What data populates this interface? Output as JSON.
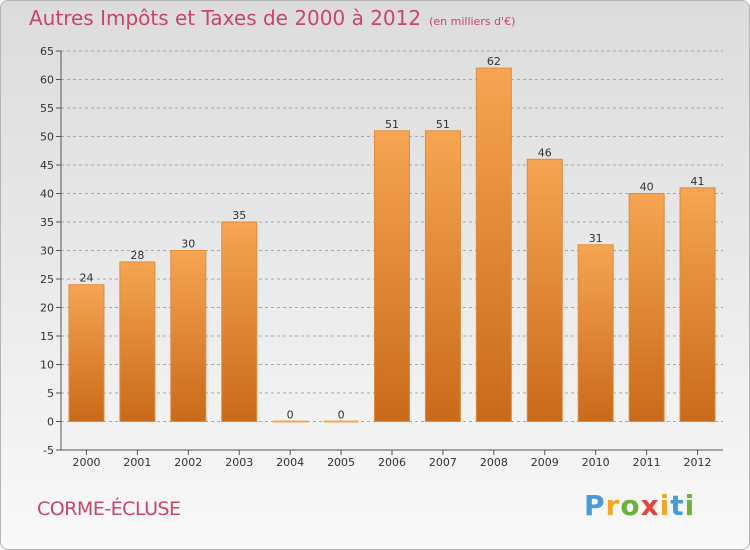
{
  "title": "Autres Impôts et Taxes de 2000 à 2012",
  "unit_note": "(en milliers d'€)",
  "commune": "CORME-ÉCLUSE",
  "logo": {
    "letters": [
      "P",
      "r",
      "o",
      "x",
      "i",
      "t",
      "i"
    ],
    "colors": [
      "#4a9bd6",
      "#f2a72b",
      "#6cb23a",
      "#e1463d",
      "#f2a72b",
      "#4a9bd6",
      "#6cb23a"
    ]
  },
  "colors": {
    "bar_top": "#f6a553",
    "bar_bottom": "#c96a1a",
    "bar_edge": "#e08c3a",
    "grid": "#a8a8a8",
    "title": "#c8466a"
  },
  "chart_data": {
    "type": "bar",
    "categories": [
      "2000",
      "2001",
      "2002",
      "2003",
      "2004",
      "2005",
      "2006",
      "2007",
      "2008",
      "2009",
      "2010",
      "2011",
      "2012"
    ],
    "values": [
      24,
      28,
      30,
      35,
      0,
      0,
      51,
      51,
      62,
      46,
      31,
      40,
      41
    ],
    "data_labels": [
      "24",
      "28",
      "30",
      "35",
      "0",
      "0",
      "51",
      "51",
      "62",
      "46",
      "31",
      "40",
      "41"
    ],
    "title": "Autres Impôts et Taxes de 2000 à 2012",
    "subtitle": "(en milliers d'€)",
    "ylim": [
      -5,
      65
    ],
    "yticks": [
      -5,
      0,
      5,
      10,
      15,
      20,
      25,
      30,
      35,
      40,
      45,
      50,
      55,
      60,
      65
    ],
    "grid": true,
    "legend": "none"
  }
}
